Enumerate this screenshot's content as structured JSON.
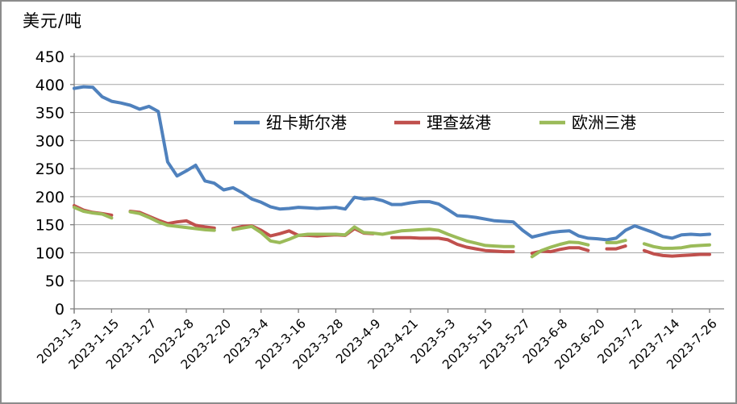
{
  "window": {
    "background": "#ffffff",
    "frame_border_color": "#8c8c8c"
  },
  "chart_data": {
    "type": "line",
    "title": "美元/吨",
    "grid": true,
    "legend_position": "inline-top-center",
    "legend": [
      "纽卡斯尔港",
      "理查兹港",
      "欧洲三港"
    ],
    "style": {
      "grid_color": "#a6a6a6",
      "axis_color": "#7f7f7f",
      "text_color": "#000000"
    },
    "y_axis": {
      "min": 0,
      "max": 450,
      "step": 50
    },
    "y_tick_labels": [
      "450",
      "400",
      "350",
      "300",
      "250",
      "200",
      "150",
      "100",
      "50",
      "0"
    ],
    "x_tick_labels": [
      "2023-1-3",
      "2023-1-15",
      "2023-1-27",
      "2023-2-8",
      "2023-2-20",
      "2023-3-4",
      "2023-3-16",
      "2023-3-28",
      "2023-4-9",
      "2023-4-21",
      "2023-5-3",
      "2023-5-15",
      "2023-5-27",
      "2023-6-8",
      "2023-6-20",
      "2023-7-2",
      "2023-7-14",
      "2023-7-26"
    ],
    "tick_every": 4,
    "x": [
      "2023-1-3",
      "2023-1-6",
      "2023-1-9",
      "2023-1-12",
      "2023-1-15",
      "2023-1-18",
      "2023-1-21",
      "2023-1-24",
      "2023-1-27",
      "2023-1-30",
      "2023-2-2",
      "2023-2-5",
      "2023-2-8",
      "2023-2-11",
      "2023-2-14",
      "2023-2-17",
      "2023-2-20",
      "2023-2-23",
      "2023-2-26",
      "2023-3-1",
      "2023-3-4",
      "2023-3-7",
      "2023-3-10",
      "2023-3-13",
      "2023-3-16",
      "2023-3-19",
      "2023-3-22",
      "2023-3-25",
      "2023-3-28",
      "2023-3-31",
      "2023-4-3",
      "2023-4-6",
      "2023-4-9",
      "2023-4-12",
      "2023-4-15",
      "2023-4-18",
      "2023-4-21",
      "2023-4-24",
      "2023-4-27",
      "2023-4-30",
      "2023-5-3",
      "2023-5-6",
      "2023-5-9",
      "2023-5-12",
      "2023-5-15",
      "2023-5-18",
      "2023-5-21",
      "2023-5-24",
      "2023-5-27",
      "2023-5-30",
      "2023-6-2",
      "2023-6-5",
      "2023-6-8",
      "2023-6-11",
      "2023-6-14",
      "2023-6-17",
      "2023-6-20",
      "2023-6-23",
      "2023-6-26",
      "2023-6-29",
      "2023-7-2",
      "2023-7-5",
      "2023-7-8",
      "2023-7-11",
      "2023-7-14",
      "2023-7-17",
      "2023-7-20",
      "2023-7-23",
      "2023-7-26"
    ],
    "series": [
      {
        "name": "纽卡斯尔港",
        "color": "#4f81bd",
        "values": [
          393,
          396,
          395,
          378,
          370,
          367,
          363,
          356,
          361,
          352,
          262,
          237,
          246,
          256,
          228,
          224,
          212,
          216,
          207,
          196,
          190,
          182,
          178,
          179,
          181,
          180,
          179,
          180,
          181,
          178,
          199,
          196,
          197,
          193,
          186,
          186,
          189,
          191,
          191,
          187,
          177,
          166,
          165,
          163,
          160,
          157,
          156,
          155,
          140,
          128,
          132,
          136,
          138,
          139,
          130,
          126,
          125,
          123,
          126,
          140,
          148,
          142,
          136,
          129,
          126,
          132,
          133,
          132,
          133
        ]
      },
      {
        "name": "理查兹港",
        "color": "#c0504d",
        "values": [
          184,
          176,
          172,
          170,
          167,
          null,
          174,
          172,
          165,
          158,
          152,
          155,
          157,
          149,
          146,
          144,
          null,
          143,
          147,
          148,
          140,
          130,
          134,
          139,
          131,
          131,
          130,
          131,
          132,
          131,
          143,
          135,
          134,
          null,
          127,
          127,
          127,
          126,
          126,
          126,
          123,
          115,
          110,
          107,
          104,
          103,
          102,
          102,
          null,
          99,
          103,
          102,
          106,
          109,
          109,
          104,
          null,
          107,
          107,
          112,
          null,
          104,
          98,
          95,
          94,
          95,
          96,
          97,
          97
        ]
      },
      {
        "name": "欧洲三港",
        "color": "#9bbb59",
        "values": [
          181,
          174,
          171,
          169,
          162,
          null,
          173,
          170,
          163,
          155,
          149,
          147,
          145,
          143,
          141,
          140,
          null,
          141,
          144,
          147,
          136,
          121,
          118,
          124,
          131,
          133,
          133,
          133,
          133,
          132,
          146,
          136,
          135,
          133,
          136,
          139,
          140,
          141,
          142,
          140,
          133,
          127,
          121,
          117,
          113,
          112,
          111,
          111,
          null,
          93,
          104,
          110,
          115,
          119,
          118,
          114,
          null,
          118,
          118,
          122,
          null,
          116,
          111,
          108,
          108,
          109,
          112,
          113,
          114
        ]
      }
    ]
  }
}
